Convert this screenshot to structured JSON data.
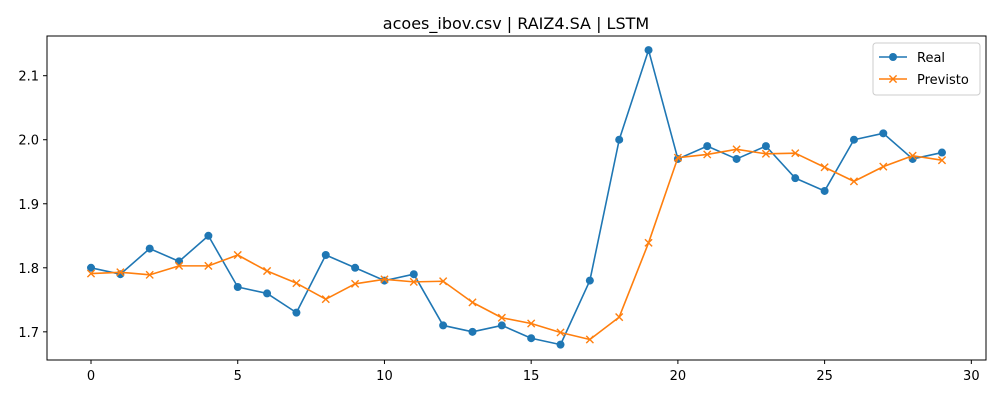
{
  "chart_data": {
    "type": "line",
    "title": "acoes_ibov.csv | RAIZ4.SA | LSTM",
    "xlabel": "",
    "ylabel": "",
    "x": [
      0,
      1,
      2,
      3,
      4,
      5,
      6,
      7,
      8,
      9,
      10,
      11,
      12,
      13,
      14,
      15,
      16,
      17,
      18,
      19,
      20,
      21,
      22,
      23,
      24,
      25,
      26,
      27,
      28,
      29
    ],
    "xlim": [
      -1.5,
      30.5
    ],
    "ylim": [
      1.656,
      2.162
    ],
    "xticks": [
      0,
      5,
      10,
      15,
      20,
      25,
      30
    ],
    "xtick_labels": [
      "0",
      "5",
      "10",
      "15",
      "20",
      "25",
      "30"
    ],
    "yticks": [
      1.7,
      1.8,
      1.9,
      2.0,
      2.1
    ],
    "ytick_labels": [
      "1.7",
      "1.8",
      "1.9",
      "2.0",
      "2.1"
    ],
    "grid": false,
    "legend_position": "top-right",
    "series": [
      {
        "name": "Real",
        "color": "#1f77b4",
        "marker": "circle",
        "values": [
          1.8,
          1.79,
          1.83,
          1.81,
          1.85,
          1.77,
          1.76,
          1.73,
          1.82,
          1.8,
          1.78,
          1.79,
          1.71,
          1.7,
          1.71,
          1.69,
          1.68,
          1.78,
          2.0,
          2.14,
          1.97,
          1.99,
          1.97,
          1.99,
          1.94,
          1.92,
          2.0,
          2.01,
          1.97,
          1.98
        ]
      },
      {
        "name": "Previsto",
        "color": "#ff7f0e",
        "marker": "x",
        "values": [
          1.791,
          1.793,
          1.789,
          1.803,
          1.803,
          1.82,
          1.795,
          1.776,
          1.751,
          1.775,
          1.782,
          1.778,
          1.779,
          1.746,
          1.722,
          1.713,
          1.699,
          1.688,
          1.723,
          1.839,
          1.972,
          1.977,
          1.985,
          1.978,
          1.979,
          1.957,
          1.935,
          1.958,
          1.975,
          1.968
        ]
      }
    ]
  }
}
